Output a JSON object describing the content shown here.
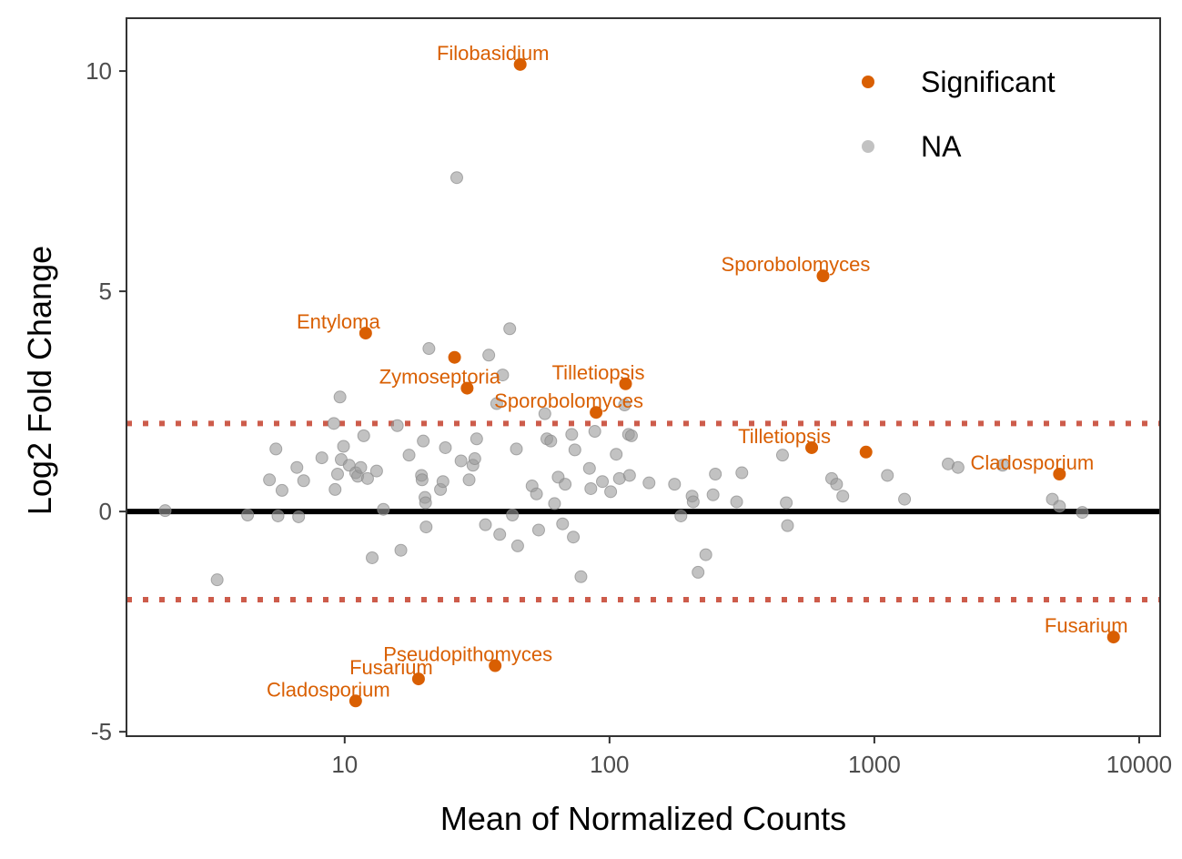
{
  "chart_data": {
    "type": "scatter",
    "title": "",
    "xlabel": "Mean of Normalized Counts",
    "ylabel": "Log2 Fold Change",
    "x_scale": "log10",
    "xlim": [
      1.5,
      12000
    ],
    "ylim": [
      -5.1,
      11.2
    ],
    "x_ticks": [
      10,
      100,
      1000,
      10000
    ],
    "x_tick_labels": [
      "10",
      "100",
      "1000",
      "10000"
    ],
    "y_ticks": [
      -5,
      0,
      5,
      10
    ],
    "y_tick_labels": [
      "-5",
      "0",
      "5",
      "10"
    ],
    "grid": false,
    "reference_lines": {
      "zero": 0,
      "thresholds": [
        2,
        -2
      ],
      "zero_color": "#000000",
      "threshold_color": "#cd5c4b"
    },
    "legend": {
      "position": "top-right",
      "entries": [
        {
          "label": "Significant",
          "color": "#d95f02",
          "text": "Significant"
        },
        {
          "label": "NA",
          "color": "#999999",
          "text": "NA"
        }
      ]
    },
    "series": [
      {
        "name": "Significant",
        "color": "#d95f02",
        "points": [
          {
            "x": 46,
            "y": 10.15,
            "label": "Filobasidium"
          },
          {
            "x": 640,
            "y": 5.35,
            "label": "Sporobolomyces"
          },
          {
            "x": 12,
            "y": 4.05,
            "label": "Entyloma"
          },
          {
            "x": 26,
            "y": 3.5,
            "label": ""
          },
          {
            "x": 29,
            "y": 2.8,
            "label": "Zymoseptoria"
          },
          {
            "x": 115,
            "y": 2.9,
            "label": "Tilletiopsis"
          },
          {
            "x": 89,
            "y": 2.25,
            "label": "Sporobolomyces"
          },
          {
            "x": 580,
            "y": 1.45,
            "label": "Tilletiopsis"
          },
          {
            "x": 930,
            "y": 1.35,
            "label": ""
          },
          {
            "x": 5000,
            "y": 0.85,
            "label": "Cladosporium"
          },
          {
            "x": 8000,
            "y": -2.85,
            "label": "Fusarium"
          },
          {
            "x": 37,
            "y": -3.5,
            "label": "Pseudopithomyces"
          },
          {
            "x": 19,
            "y": -3.8,
            "label": "Fusarium"
          },
          {
            "x": 11,
            "y": -4.3,
            "label": "Cladosporium"
          }
        ]
      },
      {
        "name": "NA",
        "color": "#999999",
        "points": [
          {
            "x": 2.1,
            "y": 0.02
          },
          {
            "x": 3.3,
            "y": -1.55
          },
          {
            "x": 4.3,
            "y": -0.08
          },
          {
            "x": 5.2,
            "y": 0.72
          },
          {
            "x": 5.5,
            "y": 1.42
          },
          {
            "x": 5.6,
            "y": -0.1
          },
          {
            "x": 5.8,
            "y": 0.48
          },
          {
            "x": 6.6,
            "y": 1.0
          },
          {
            "x": 6.7,
            "y": -0.12
          },
          {
            "x": 7.0,
            "y": 0.7
          },
          {
            "x": 8.2,
            "y": 1.22
          },
          {
            "x": 9.1,
            "y": 2.0
          },
          {
            "x": 9.2,
            "y": 0.5
          },
          {
            "x": 9.4,
            "y": 0.85
          },
          {
            "x": 9.6,
            "y": 2.6
          },
          {
            "x": 9.7,
            "y": 1.18
          },
          {
            "x": 9.9,
            "y": 1.48
          },
          {
            "x": 10.4,
            "y": 1.05
          },
          {
            "x": 11.0,
            "y": 0.88
          },
          {
            "x": 11.2,
            "y": 0.8
          },
          {
            "x": 11.5,
            "y": 1.0
          },
          {
            "x": 11.8,
            "y": 1.72
          },
          {
            "x": 12.2,
            "y": 0.75
          },
          {
            "x": 12.7,
            "y": -1.05
          },
          {
            "x": 13.2,
            "y": 0.92
          },
          {
            "x": 14.0,
            "y": 0.05
          },
          {
            "x": 15.8,
            "y": 1.95
          },
          {
            "x": 16.3,
            "y": -0.88
          },
          {
            "x": 17.5,
            "y": 1.28
          },
          {
            "x": 19.5,
            "y": 0.82
          },
          {
            "x": 19.6,
            "y": 0.72
          },
          {
            "x": 19.8,
            "y": 1.6
          },
          {
            "x": 20.1,
            "y": 0.32
          },
          {
            "x": 20.2,
            "y": 0.2
          },
          {
            "x": 20.3,
            "y": -0.35
          },
          {
            "x": 20.8,
            "y": 3.7
          },
          {
            "x": 23.0,
            "y": 0.5
          },
          {
            "x": 23.5,
            "y": 0.68
          },
          {
            "x": 24.0,
            "y": 1.45
          },
          {
            "x": 26.5,
            "y": 7.58
          },
          {
            "x": 27.5,
            "y": 1.15
          },
          {
            "x": 29.5,
            "y": 0.72
          },
          {
            "x": 30.5,
            "y": 1.05
          },
          {
            "x": 31.0,
            "y": 1.2
          },
          {
            "x": 31.5,
            "y": 1.65
          },
          {
            "x": 34.0,
            "y": -0.3
          },
          {
            "x": 35.0,
            "y": 3.55
          },
          {
            "x": 37.5,
            "y": 2.45
          },
          {
            "x": 38.5,
            "y": -0.52
          },
          {
            "x": 39.5,
            "y": 3.1
          },
          {
            "x": 42.0,
            "y": 4.15
          },
          {
            "x": 43.0,
            "y": -0.08
          },
          {
            "x": 44.5,
            "y": 1.42
          },
          {
            "x": 45.0,
            "y": -0.78
          },
          {
            "x": 51.0,
            "y": 0.58
          },
          {
            "x": 53.0,
            "y": 0.4
          },
          {
            "x": 54.0,
            "y": -0.42
          },
          {
            "x": 57.0,
            "y": 2.22
          },
          {
            "x": 58.0,
            "y": 1.65
          },
          {
            "x": 60.0,
            "y": 1.6
          },
          {
            "x": 62.0,
            "y": 0.18
          },
          {
            "x": 64.0,
            "y": 0.78
          },
          {
            "x": 66.5,
            "y": -0.28
          },
          {
            "x": 68.0,
            "y": 0.62
          },
          {
            "x": 72.0,
            "y": 1.75
          },
          {
            "x": 73.0,
            "y": -0.58
          },
          {
            "x": 74.0,
            "y": 1.4
          },
          {
            "x": 78.0,
            "y": -1.48
          },
          {
            "x": 84.0,
            "y": 0.98
          },
          {
            "x": 85.0,
            "y": 0.52
          },
          {
            "x": 88.0,
            "y": 1.82
          },
          {
            "x": 94.0,
            "y": 0.68
          },
          {
            "x": 101.0,
            "y": 0.45
          },
          {
            "x": 106.0,
            "y": 1.3
          },
          {
            "x": 109.0,
            "y": 0.75
          },
          {
            "x": 114.0,
            "y": 2.42
          },
          {
            "x": 118.0,
            "y": 1.75
          },
          {
            "x": 119.0,
            "y": 0.82
          },
          {
            "x": 121.0,
            "y": 1.72
          },
          {
            "x": 141.0,
            "y": 0.65
          },
          {
            "x": 176.0,
            "y": 0.62
          },
          {
            "x": 186.0,
            "y": -0.1
          },
          {
            "x": 205.0,
            "y": 0.35
          },
          {
            "x": 207.0,
            "y": 0.22
          },
          {
            "x": 216.0,
            "y": -1.38
          },
          {
            "x": 231.0,
            "y": -0.98
          },
          {
            "x": 246.0,
            "y": 0.38
          },
          {
            "x": 251.0,
            "y": 0.85
          },
          {
            "x": 302.0,
            "y": 0.22
          },
          {
            "x": 316.0,
            "y": 0.88
          },
          {
            "x": 450.0,
            "y": 1.28
          },
          {
            "x": 465.0,
            "y": 0.2
          },
          {
            "x": 470.0,
            "y": -0.32
          },
          {
            "x": 690.0,
            "y": 0.75
          },
          {
            "x": 720.0,
            "y": 0.62
          },
          {
            "x": 760.0,
            "y": 0.35
          },
          {
            "x": 1120.0,
            "y": 0.82
          },
          {
            "x": 1300.0,
            "y": 0.28
          },
          {
            "x": 1900.0,
            "y": 1.08
          },
          {
            "x": 2070.0,
            "y": 1.0
          },
          {
            "x": 3050.0,
            "y": 1.05
          },
          {
            "x": 4700.0,
            "y": 0.28
          },
          {
            "x": 5000.0,
            "y": 0.12
          },
          {
            "x": 6100.0,
            "y": -0.02
          }
        ]
      }
    ]
  }
}
